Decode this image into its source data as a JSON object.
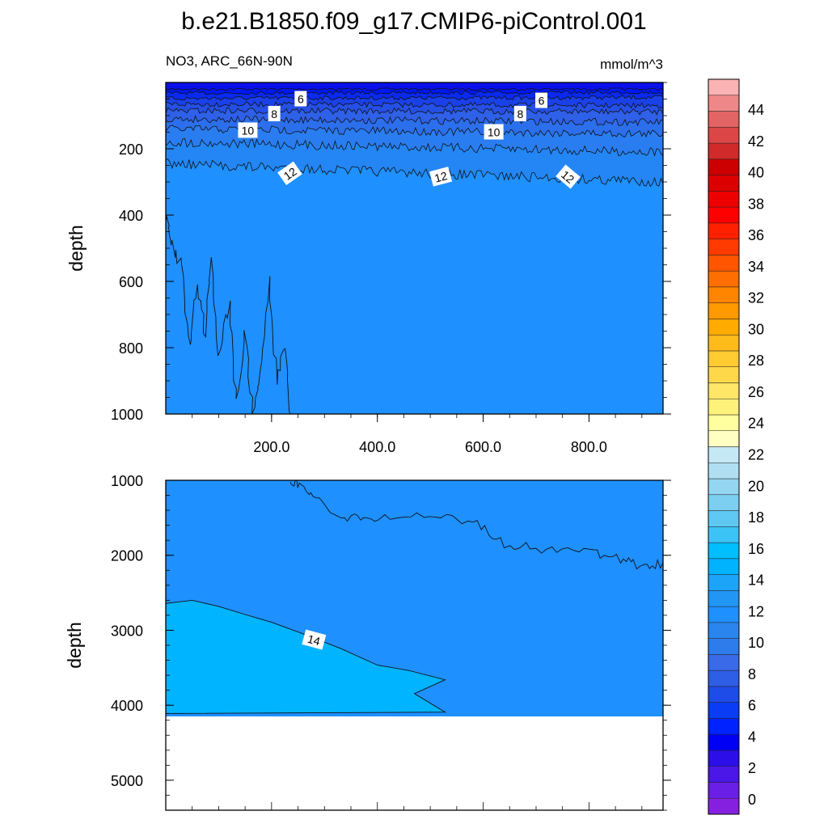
{
  "chart_data": [
    {
      "type": "contour",
      "panel": "upper",
      "title": "b.e21.B1850.f09_g17.CMIP6-piControl.001",
      "subtitle_left": "NO3, ARC_66N-90N",
      "subtitle_right": "mmol/m^3",
      "xlabel": "",
      "ylabel": "depth",
      "xlim": [
        0,
        940
      ],
      "ylim": [
        1000,
        0
      ],
      "x_ticks": [
        200,
        400,
        600,
        800
      ],
      "x_tick_labels": [
        "200.0",
        "400.0",
        "600.0",
        "800.0"
      ],
      "y_ticks": [
        200,
        400,
        600,
        800,
        1000
      ],
      "y_tick_labels": [
        "200",
        "400",
        "600",
        "800",
        "1000"
      ],
      "contour_labels": [
        {
          "text": "6",
          "x": 255,
          "depth": 50
        },
        {
          "text": "8",
          "x": 205,
          "depth": 95
        },
        {
          "text": "10",
          "x": 155,
          "depth": 145
        },
        {
          "text": "12",
          "x": 235,
          "depth": 275
        },
        {
          "text": "6",
          "x": 710,
          "depth": 55
        },
        {
          "text": "8",
          "x": 670,
          "depth": 95
        },
        {
          "text": "10",
          "x": 620,
          "depth": 150
        },
        {
          "text": "12",
          "x": 520,
          "depth": 285
        },
        {
          "text": "12",
          "x": 760,
          "depth": 285
        }
      ],
      "contour_lines": [
        {
          "level": 4,
          "depth_start": 20,
          "depth_end": 20
        },
        {
          "level": 5,
          "depth_start": 32,
          "depth_end": 30
        },
        {
          "level": 6,
          "depth_start": 48,
          "depth_end": 45
        },
        {
          "level": 7,
          "depth_start": 65,
          "depth_end": 70
        },
        {
          "level": 8,
          "depth_start": 85,
          "depth_end": 88
        },
        {
          "level": 9,
          "depth_start": 110,
          "depth_end": 120
        },
        {
          "level": 10,
          "depth_start": 140,
          "depth_end": 155
        },
        {
          "level": 11,
          "depth_start": 180,
          "depth_end": 210
        },
        {
          "level": 12,
          "depth_start": 245,
          "depth_end": 300
        }
      ]
    },
    {
      "type": "contour",
      "panel": "lower",
      "xlabel": "",
      "ylabel": "depth",
      "xlim": [
        0,
        940
      ],
      "ylim": [
        5400,
        1000
      ],
      "y_ticks": [
        1000,
        2000,
        3000,
        4000,
        5000
      ],
      "y_tick_labels": [
        "1000",
        "2000",
        "3000",
        "4000",
        "5000"
      ],
      "bottom_depth": 4110,
      "contour_labels": [
        {
          "text": "14",
          "x": 280,
          "depth": 3130
        }
      ]
    }
  ],
  "colorbar": {
    "tick_labels": [
      "0",
      "2",
      "4",
      "6",
      "8",
      "10",
      "12",
      "14",
      "16",
      "18",
      "20",
      "22",
      "24",
      "26",
      "28",
      "30",
      "32",
      "34",
      "36",
      "38",
      "40",
      "42",
      "44"
    ],
    "colors": [
      "#8520e0",
      "#6a1fe6",
      "#4b16e8",
      "#2c0ee8",
      "#0000f5",
      "#0022ff",
      "#0a3cf5",
      "#1e4ce8",
      "#2e5de6",
      "#3a6ae8",
      "#2e7cec",
      "#2b85ee",
      "#1e90ff",
      "#2196f5",
      "#1ca4f8",
      "#00b3ff",
      "#00beff",
      "#3cc3f5",
      "#5ec8f2",
      "#7ccff0",
      "#95d6f0",
      "#b0dff2",
      "#c5e8f5",
      "#ffffc4",
      "#ffffa0",
      "#fff27a",
      "#ffe666",
      "#ffd84a",
      "#ffcb30",
      "#ffbb1a",
      "#ffab00",
      "#ff9900",
      "#ff8400",
      "#ff6e00",
      "#ff5500",
      "#ff3a00",
      "#ff2000",
      "#ff0000",
      "#ee0000",
      "#dd0000",
      "#cc0000",
      "#d02a2a",
      "#dd4646",
      "#e36464",
      "#ee8888",
      "#fbb3b3"
    ]
  },
  "field_colors": {
    "lev12": "#1e90ff",
    "lev14": "#00b4ff"
  }
}
